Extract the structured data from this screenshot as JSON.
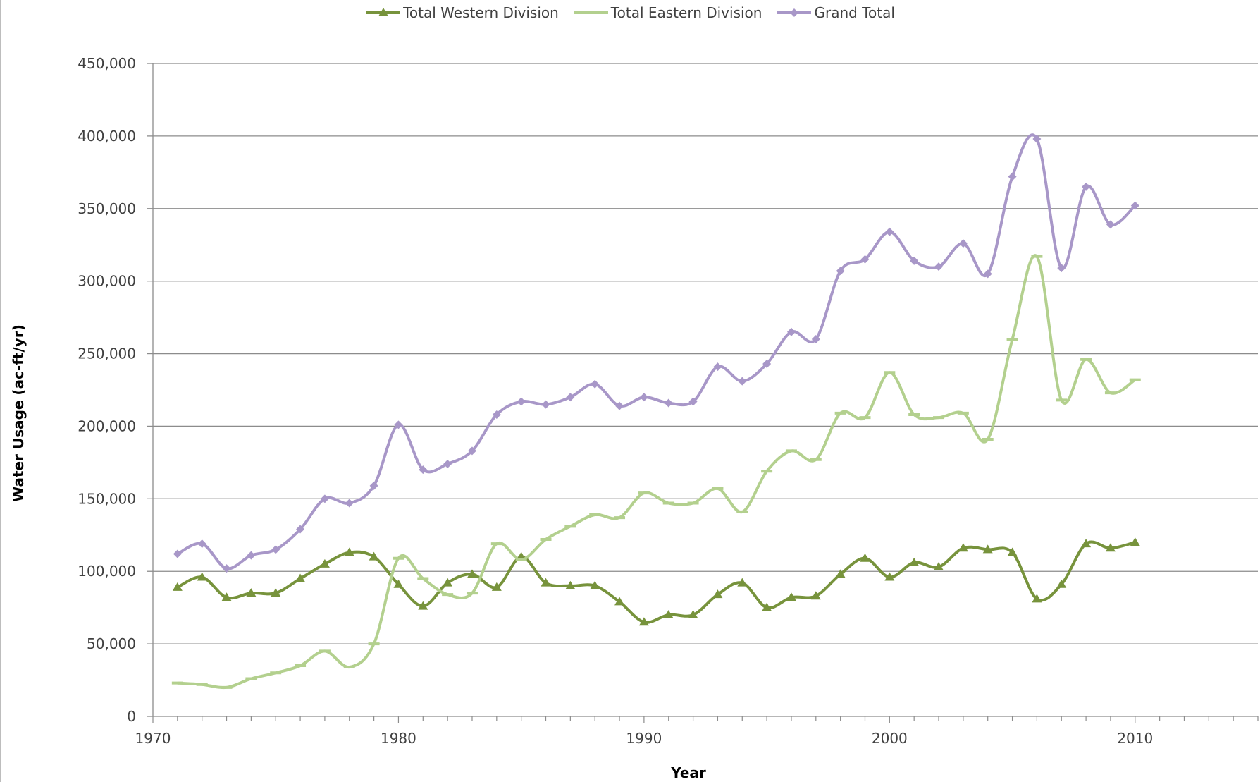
{
  "chart_data": {
    "type": "line",
    "title": "",
    "xlabel": "Year",
    "ylabel": "Water Usage (ac-ft/yr)",
    "xlim": [
      1970,
      2015
    ],
    "ylim": [
      0,
      450000
    ],
    "x_ticks": [
      1970,
      1980,
      1990,
      2000,
      2010
    ],
    "x_tick_labels": [
      "1970",
      "1980",
      "1990",
      "2000",
      "2010"
    ],
    "y_ticks": [
      0,
      50000,
      100000,
      150000,
      200000,
      250000,
      300000,
      350000,
      400000,
      450000
    ],
    "y_tick_labels": [
      "0",
      "50,000",
      "100,000",
      "150,000",
      "200,000",
      "250,000",
      "300,000",
      "350,000",
      "400,000",
      "450,000"
    ],
    "grid": "horizontal",
    "legend_position": "top-center",
    "x": [
      1971,
      1972,
      1973,
      1974,
      1975,
      1976,
      1977,
      1978,
      1979,
      1980,
      1981,
      1982,
      1983,
      1984,
      1985,
      1986,
      1987,
      1988,
      1989,
      1990,
      1991,
      1992,
      1993,
      1994,
      1995,
      1996,
      1997,
      1998,
      1999,
      2000,
      2001,
      2002,
      2003,
      2004,
      2005,
      2006,
      2007,
      2008,
      2009,
      2010
    ],
    "series": [
      {
        "name": "Total Western Division",
        "color": "#77933c",
        "marker": "triangle",
        "values": [
          89000,
          96000,
          82000,
          85000,
          85000,
          95000,
          105000,
          113000,
          110000,
          91000,
          76000,
          92000,
          98000,
          89000,
          110000,
          92000,
          90000,
          90000,
          79000,
          65000,
          70000,
          70000,
          84000,
          92000,
          75000,
          82000,
          83000,
          98000,
          109000,
          96000,
          106000,
          103000,
          116000,
          115000,
          113000,
          81000,
          91000,
          119000,
          116000,
          120000
        ]
      },
      {
        "name": "Total Eastern Division",
        "color": "#b3d08e",
        "marker": "dash",
        "values": [
          23000,
          22000,
          20000,
          26000,
          30000,
          35000,
          45000,
          34000,
          50000,
          109000,
          95000,
          84000,
          85000,
          119000,
          108000,
          122000,
          131000,
          139000,
          137000,
          154000,
          147000,
          147000,
          157000,
          141000,
          169000,
          183000,
          177000,
          209000,
          206000,
          237000,
          208000,
          206000,
          209000,
          191000,
          260000,
          317000,
          218000,
          246000,
          223000,
          232000
        ]
      },
      {
        "name": "Grand Total",
        "color": "#a897c8",
        "marker": "diamond",
        "values": [
          112000,
          119000,
          102000,
          111000,
          115000,
          129000,
          150000,
          147000,
          159000,
          201000,
          170000,
          174000,
          183000,
          208000,
          217000,
          215000,
          220000,
          229000,
          214000,
          220000,
          216000,
          217000,
          241000,
          231000,
          243000,
          265000,
          260000,
          307000,
          315000,
          334000,
          314000,
          310000,
          326000,
          305000,
          372000,
          398000,
          309000,
          365000,
          339000,
          352000
        ]
      }
    ]
  }
}
